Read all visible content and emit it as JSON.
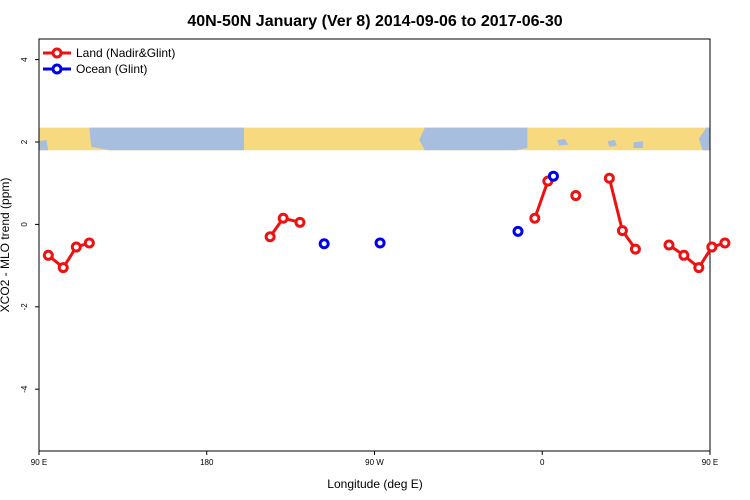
{
  "chart_data": {
    "type": "line",
    "title": "40N-50N January (Ver 8)   2014-09-06 to 2017-06-30",
    "xlabel": "Longitude (deg E)",
    "ylabel": "XCO2 - MLO trend (ppm)",
    "xlim": [
      90,
      450
    ],
    "ylim": [
      -5.5,
      4.5
    ],
    "x_ticks": [
      {
        "value": 90,
        "label": "90 E"
      },
      {
        "value": 180,
        "label": "180"
      },
      {
        "value": 270,
        "label": "90 W"
      },
      {
        "value": 360,
        "label": "0"
      },
      {
        "value": 450,
        "label": "90 E"
      },
      {
        "value": 540,
        "label": "180"
      }
    ],
    "y_ticks": [
      4,
      2,
      0,
      -2,
      -4
    ],
    "grid": false,
    "legend_position": "top-left",
    "map_strip": {
      "y_range": [
        1.8,
        2.35
      ],
      "land_color": "#f7da7f",
      "ocean_color": "#a8bedf"
    },
    "series": [
      {
        "name": "Land (Nadir&Glint)",
        "color": "#ee1111",
        "segments": [
          [
            [
              95,
              -0.75
            ],
            [
              103,
              -1.05
            ],
            [
              110,
              -0.55
            ],
            [
              117,
              -0.45
            ]
          ],
          [
            [
              214,
              -0.3
            ],
            [
              221,
              0.15
            ],
            [
              230,
              0.05
            ]
          ],
          [
            [
              356,
              0.15
            ],
            [
              363,
              1.05
            ]
          ],
          [
            [
              378,
              0.7
            ]
          ],
          [
            [
              396,
              1.12
            ],
            [
              403,
              -0.15
            ],
            [
              410,
              -0.6
            ]
          ],
          [
            [
              428,
              -0.5
            ],
            [
              436,
              -0.75
            ],
            [
              444,
              -1.05
            ],
            [
              451,
              -0.55
            ],
            [
              458,
              -0.45
            ]
          ]
        ]
      },
      {
        "name": "Ocean (Glint)",
        "color": "#0000ee",
        "segments": [
          [
            [
              243,
              -0.47
            ]
          ],
          [
            [
              273,
              -0.45
            ]
          ],
          [
            [
              347,
              -0.17
            ]
          ],
          [
            [
              366,
              1.17
            ]
          ]
        ]
      }
    ]
  }
}
